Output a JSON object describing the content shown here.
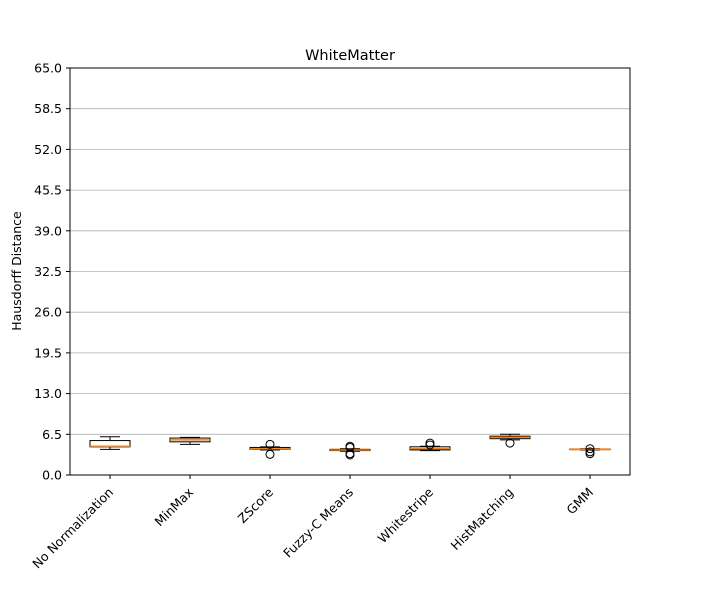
{
  "chart_data": {
    "type": "box",
    "title": "WhiteMatter",
    "xlabel": "",
    "ylabel": "Hausdorff Distance",
    "ylim": [
      0,
      65
    ],
    "yticks": [
      "0.0",
      "6.5",
      "13.0",
      "19.5",
      "26.0",
      "32.5",
      "39.0",
      "45.5",
      "52.0",
      "58.5",
      "65.0"
    ],
    "grid": "y",
    "categories": [
      "No Normalization",
      "MinMax",
      "ZScore",
      "Fuzzy-C Means",
      "Whitestripe",
      "HistMatching",
      "GMM"
    ],
    "boxes": [
      {
        "whisker_low": 4.1,
        "q1": 4.5,
        "median": 4.6,
        "q3": 5.5,
        "whisker_high": 6.1,
        "outliers": []
      },
      {
        "whisker_low": 4.9,
        "q1": 5.3,
        "median": 5.6,
        "q3": 5.9,
        "whisker_high": 6.0,
        "outliers": []
      },
      {
        "whisker_low": 4.0,
        "q1": 4.1,
        "median": 4.2,
        "q3": 4.4,
        "whisker_high": 4.5,
        "outliers": [
          3.3,
          4.9
        ]
      },
      {
        "whisker_low": 3.8,
        "q1": 3.9,
        "median": 4.0,
        "q3": 4.1,
        "whisker_high": 4.2,
        "outliers": [
          3.2,
          3.4,
          4.4,
          4.6
        ]
      },
      {
        "whisker_low": 3.9,
        "q1": 4.0,
        "median": 4.2,
        "q3": 4.5,
        "whisker_high": 4.6,
        "outliers": [
          4.8,
          5.1
        ]
      },
      {
        "whisker_low": 5.6,
        "q1": 5.8,
        "median": 6.0,
        "q3": 6.2,
        "whisker_high": 6.5,
        "outliers": [
          5.1
        ]
      },
      {
        "whisker_low": 4.0,
        "q1": 4.05,
        "median": 4.1,
        "q3": 4.15,
        "whisker_high": 4.2,
        "outliers": [
          3.4,
          3.7,
          4.2
        ]
      }
    ],
    "colors": {
      "box": "#000000",
      "median": "#ff7f0e",
      "grid": "#b0b0b0",
      "outlier": "#000000"
    }
  }
}
